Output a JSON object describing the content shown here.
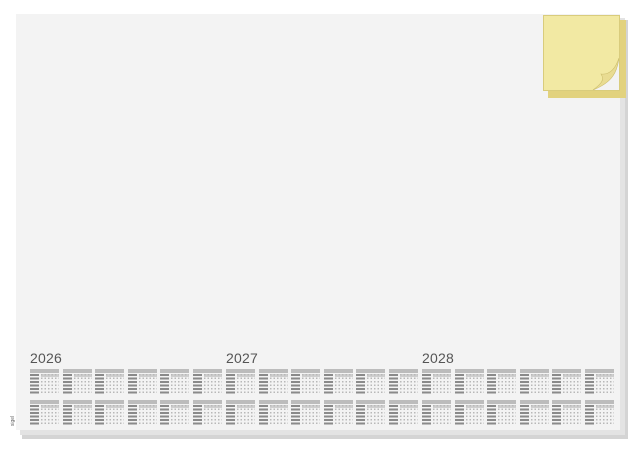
{
  "product": {
    "brand_logo": "sigel"
  },
  "calendar": {
    "years": [
      "2026",
      "2027",
      "2028"
    ]
  },
  "sticky_note": {
    "color": "#f2e9a3"
  },
  "colors": {
    "pad": "#f3f3f3",
    "month_header": "#bcbcbc",
    "weekend": "#8a8a8a"
  }
}
